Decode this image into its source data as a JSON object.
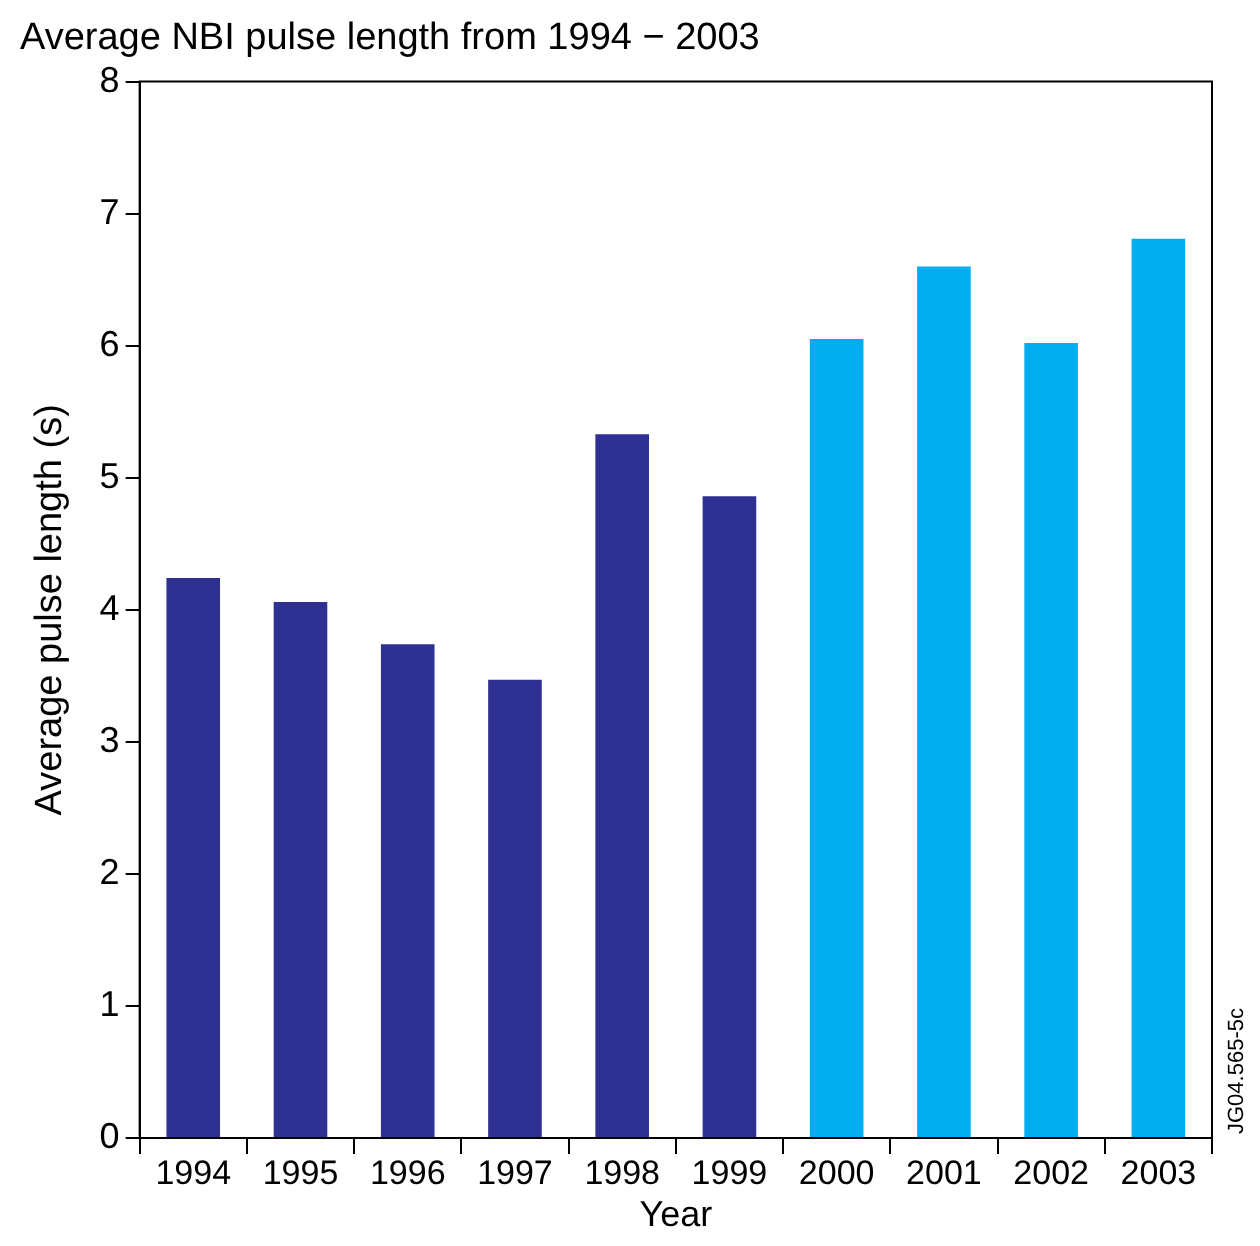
{
  "chart_data": {
    "type": "bar",
    "title": "Average NBI pulse length from 1994 − 2003",
    "xlabel": "Year",
    "ylabel": "Average pulse length (s)",
    "categories": [
      "1994",
      "1995",
      "1996",
      "1997",
      "1998",
      "1999",
      "2000",
      "2001",
      "2002",
      "2003"
    ],
    "values": [
      4.24,
      4.06,
      3.74,
      3.47,
      5.33,
      4.86,
      6.05,
      6.6,
      6.02,
      6.81
    ],
    "colors": [
      "#2e3192",
      "#2e3192",
      "#2e3192",
      "#2e3192",
      "#2e3192",
      "#2e3192",
      "#00aeef",
      "#00aeef",
      "#00aeef",
      "#00aeef"
    ],
    "ylim": [
      0,
      8
    ],
    "yticks": [
      0,
      1,
      2,
      3,
      4,
      5,
      6,
      7,
      8
    ],
    "grid": false,
    "legend": false,
    "annotations": [
      "JG04.565-5c"
    ]
  }
}
